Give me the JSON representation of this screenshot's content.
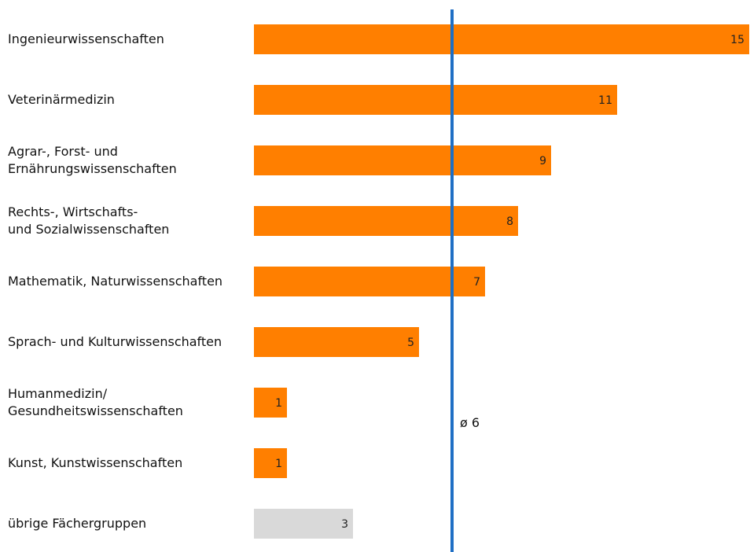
{
  "chart_data": {
    "type": "barh",
    "categories": [
      "Ingenieurwissenschaften",
      "Veterinärmedizin",
      "Agrar-, Forst- und\nErnährungswissenschaften",
      "Rechts-, Wirtschafts-\nund Sozialwissenschaften",
      "Mathematik, Naturwissenschaften",
      "Sprach- und Kulturwissenschaften",
      "Humanmedizin/\nGesundheitswissenschaften",
      "Kunst, Kunstwissenschaften",
      "übrige Fächergruppen"
    ],
    "values": [
      15,
      11,
      9,
      8,
      7,
      5,
      1,
      1,
      3
    ],
    "colors": [
      "#ff7f00",
      "#ff7f00",
      "#ff7f00",
      "#ff7f00",
      "#ff7f00",
      "#ff7f00",
      "#ff7f00",
      "#ff7f00",
      "#d9d9d9"
    ],
    "xlim": [
      0,
      15
    ],
    "reference_line": {
      "value": 6,
      "label": "ø 6",
      "color": "#1f6fc5"
    }
  }
}
